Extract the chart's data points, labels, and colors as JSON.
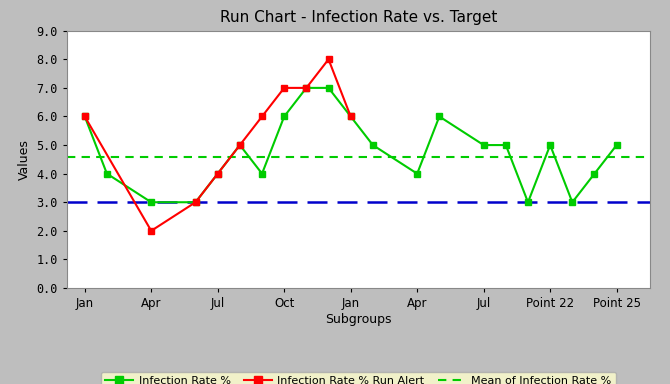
{
  "title": "Run Chart - Infection Rate vs. Target",
  "xlabel": "Subgroups",
  "ylabel": "Values",
  "ylim": [
    0.0,
    9.0
  ],
  "yticks": [
    0.0,
    1.0,
    2.0,
    3.0,
    4.0,
    5.0,
    6.0,
    7.0,
    8.0,
    9.0
  ],
  "x_labels": [
    "Jan",
    "Apr",
    "Jul",
    "Oct",
    "Jan",
    "Apr",
    "Jul",
    "Point 22",
    "Point 25"
  ],
  "x_tick_pos": [
    0,
    3,
    6,
    9,
    12,
    15,
    18,
    21,
    24
  ],
  "green_x": [
    0,
    1,
    3,
    5,
    6,
    7,
    8,
    9,
    10,
    11,
    12,
    13,
    15,
    16,
    18,
    19,
    20,
    21,
    22,
    23,
    24
  ],
  "green_y": [
    6,
    4,
    3,
    3,
    4,
    5,
    4,
    6,
    7,
    7,
    6,
    5,
    4,
    6,
    5,
    5,
    3,
    5,
    3,
    4,
    5
  ],
  "red_x": [
    0,
    3,
    5,
    6,
    7,
    8,
    9,
    10,
    11,
    12
  ],
  "red_y": [
    6,
    2,
    3,
    4,
    5,
    6,
    7,
    7,
    8,
    6
  ],
  "mean_value": 4.6,
  "target_value": 3.0,
  "background_color": "#bebebe",
  "plot_bg_color": "#ffffff",
  "legend_bg_color": "#ffffcc",
  "green_color": "#00cc00",
  "red_color": "#ff0000",
  "mean_color": "#00cc00",
  "target_color": "#0000cc",
  "title_fontsize": 11,
  "axis_label_fontsize": 9,
  "tick_fontsize": 8.5
}
